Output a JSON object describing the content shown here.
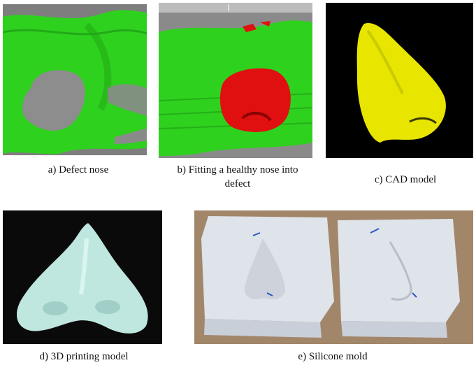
{
  "figure": {
    "panels": [
      {
        "id": "a",
        "caption": "a) Defect nose"
      },
      {
        "id": "b",
        "caption_line1": "b) Fitting a healthy nose into",
        "caption_line2": "defect"
      },
      {
        "id": "c",
        "caption": "c) CAD model"
      },
      {
        "id": "d",
        "caption": "d) 3D printing model"
      },
      {
        "id": "e",
        "caption": "e) Silicone mold"
      }
    ],
    "colors": {
      "scan_green": "#2fd11f",
      "fit_red": "#e01010",
      "cad_yellow": "#e8e600",
      "print_bg": "#0a0a0a",
      "print_resin": "#bfe7e0",
      "mold_bg": "#a2866a",
      "silicone": "#dfe3ea"
    }
  }
}
